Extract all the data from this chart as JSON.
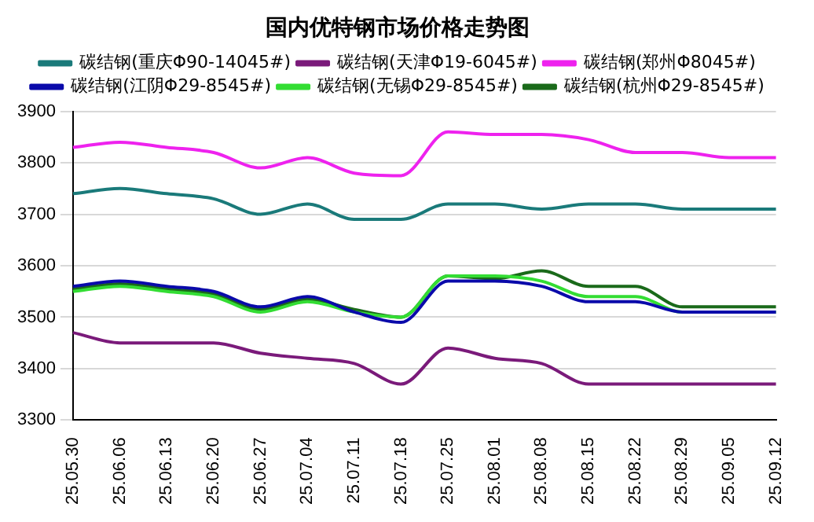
{
  "chart_data": {
    "type": "line",
    "title": "国内优特钢市场价格走势图",
    "categories": [
      "25.05.30",
      "25.06.06",
      "25.06.13",
      "25.06.20",
      "25.06.27",
      "25.07.04",
      "25.07.11",
      "25.07.18",
      "25.07.25",
      "25.08.01",
      "25.08.08",
      "25.08.15",
      "25.08.22",
      "25.08.29",
      "25.09.05",
      "25.09.12"
    ],
    "series": [
      {
        "name": "碳结钢(重庆Φ90-14045#)",
        "color": "#1a7a7a",
        "values": [
          3740,
          3750,
          3740,
          3730,
          3700,
          3720,
          3690,
          3690,
          3720,
          3720,
          3710,
          3720,
          3720,
          3710,
          3710,
          3710
        ]
      },
      {
        "name": "碳结钢(天津Φ19-6045#)",
        "color": "#7a1a7a",
        "values": [
          3470,
          3450,
          3450,
          3450,
          3430,
          3420,
          3410,
          3370,
          3440,
          3420,
          3410,
          3370,
          3370,
          3370,
          3370,
          3370
        ]
      },
      {
        "name": "碳结钢(郑州Φ8045#)",
        "color": "#ee22ee",
        "values": [
          3830,
          3840,
          3830,
          3820,
          3790,
          3810,
          3780,
          3775,
          3860,
          3855,
          3855,
          3845,
          3820,
          3820,
          3810,
          3810
        ]
      },
      {
        "name": "碳结钢(江阴Φ29-8545#)",
        "color": "#0a0aaa",
        "values": [
          3560,
          3570,
          3560,
          3550,
          3520,
          3540,
          3510,
          3490,
          3570,
          3570,
          3560,
          3530,
          3530,
          3510,
          3510,
          3510
        ]
      },
      {
        "name": "碳结钢(无锡Φ29-8545#)",
        "color": "#33dd33",
        "values": [
          3550,
          3560,
          3550,
          3540,
          3510,
          3530,
          3510,
          3500,
          3580,
          3580,
          3570,
          3540,
          3540,
          3510,
          3510,
          3510
        ]
      },
      {
        "name": "碳结钢(杭州Φ29-8545#)",
        "color": "#1a6a1a",
        "values": [
          3555,
          3565,
          3555,
          3545,
          3515,
          3535,
          3515,
          3500,
          3580,
          3575,
          3590,
          3560,
          3560,
          3520,
          3520,
          3520
        ]
      }
    ],
    "ylim": [
      3300,
      3900
    ],
    "yticks": [
      3300,
      3400,
      3500,
      3600,
      3700,
      3800,
      3900
    ],
    "grid": "y",
    "legend": "top",
    "marker": "none",
    "line_style": "solid"
  }
}
